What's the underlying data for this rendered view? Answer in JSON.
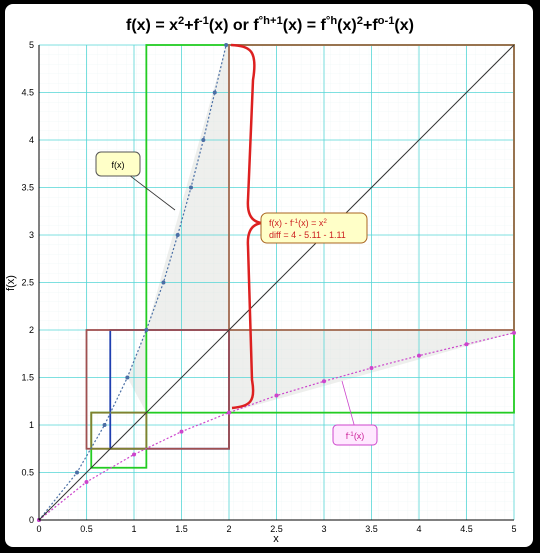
{
  "chart_data": {
    "type": "line",
    "title": {
      "parts": [
        {
          "t": "f(x) = x"
        },
        {
          "t": "2",
          "sup": true
        },
        {
          "t": "+f"
        },
        {
          "t": "-1",
          "sup": true
        },
        {
          "t": "(x) or  f"
        },
        {
          "t": "°h+1",
          "sup": true
        },
        {
          "t": "(x) = f"
        },
        {
          "t": "°h",
          "sup": true
        },
        {
          "t": "(x)"
        },
        {
          "t": "2",
          "sup": true
        },
        {
          "t": "+f"
        },
        {
          "t": "o-1",
          "sup": true
        },
        {
          "t": "(x)"
        }
      ]
    },
    "xlabel": "x",
    "ylabel": "f(x)",
    "xlim": [
      0,
      5
    ],
    "ylim": [
      0,
      5
    ],
    "x_ticks": [
      "0",
      "0.5",
      "1",
      "1.5",
      "2",
      "2.5",
      "3",
      "3.5",
      "4",
      "4.5",
      "5"
    ],
    "y_ticks": [
      "0",
      "0.5",
      "1",
      "1.5",
      "2",
      "2.5",
      "3",
      "3.5",
      "4",
      "4.5",
      "5"
    ],
    "grid": true,
    "series": [
      {
        "key": "f",
        "color": "#4a6fa5",
        "points": [
          [
            0,
            0
          ],
          [
            0.4,
            0.5
          ],
          [
            0.69,
            1.0
          ],
          [
            0.93,
            1.5
          ],
          [
            1.13,
            2.0
          ],
          [
            1.31,
            2.5
          ],
          [
            1.46,
            3.0
          ],
          [
            1.6,
            3.5
          ],
          [
            1.73,
            4.0
          ],
          [
            1.85,
            4.5
          ],
          [
            1.97,
            5.0
          ]
        ]
      },
      {
        "key": "finv",
        "color": "#cc44cc",
        "points": [
          [
            0,
            0
          ],
          [
            0.5,
            0.4
          ],
          [
            1.0,
            0.69
          ],
          [
            1.5,
            0.93
          ],
          [
            2.0,
            1.13
          ],
          [
            2.5,
            1.31
          ],
          [
            3.0,
            1.46
          ],
          [
            3.5,
            1.6
          ],
          [
            4.0,
            1.73
          ],
          [
            4.5,
            1.85
          ],
          [
            5.0,
            1.97
          ]
        ]
      },
      {
        "key": "identity",
        "color": "#333333",
        "points": [
          [
            0,
            0
          ],
          [
            5,
            5
          ]
        ]
      }
    ],
    "shaded_regions": [
      {
        "color": "#d9dcd6",
        "points": [
          [
            1.13,
            2.0
          ],
          [
            1.97,
            5.0
          ],
          [
            2.0,
            5.0
          ],
          [
            2.0,
            2.0
          ]
        ]
      },
      {
        "color": "#d9dcd6",
        "points": [
          [
            2.0,
            1.13
          ],
          [
            5.0,
            1.97
          ],
          [
            5.0,
            2.0
          ],
          [
            2.0,
            2.0
          ]
        ]
      },
      {
        "color": "#d9dcd6",
        "points": [
          [
            0.93,
            1.5
          ],
          [
            1.13,
            2.0
          ],
          [
            1.13,
            1.13
          ]
        ]
      }
    ],
    "squares": [
      {
        "color": "#22cc22",
        "x0": 1.13,
        "y0": 1.13,
        "x1": 5.0,
        "y1": 5.0
      },
      {
        "color": "#22cc22",
        "x0": 0.55,
        "y0": 0.55,
        "x1": 1.13,
        "y1": 1.13
      },
      {
        "color": "#1f3fb0",
        "x0": 0.75,
        "y0": 0.75,
        "x1": 2.0,
        "y1": 2.0
      },
      {
        "color": "#a05050",
        "x0": 0.5,
        "y0": 0.75,
        "x1": 2.0,
        "y1": 2.0
      },
      {
        "color": "#a06a50",
        "x0": 2.0,
        "y0": 2.0,
        "x1": 5.0,
        "y1": 5.0
      },
      {
        "color": "#808030",
        "x0": 0.55,
        "y0": 0.75,
        "x1": 1.13,
        "y1": 1.13
      }
    ],
    "annotations": [
      {
        "key": "f_label",
        "text": "f(x)"
      },
      {
        "key": "finv_label",
        "parts": [
          {
            "t": "f"
          },
          {
            "t": "-1",
            "sup": true
          },
          {
            "t": "(x)"
          }
        ]
      },
      {
        "key": "diff_label",
        "lines": [
          [
            {
              "t": "f(x) - f"
            },
            {
              "t": "-1",
              "sup": true
            },
            {
              "t": "(x) = x"
            },
            {
              "t": "2",
              "sup": true
            }
          ],
          [
            {
              "t": "diff = 4 - 5.11 - 1.11"
            }
          ]
        ]
      }
    ]
  }
}
